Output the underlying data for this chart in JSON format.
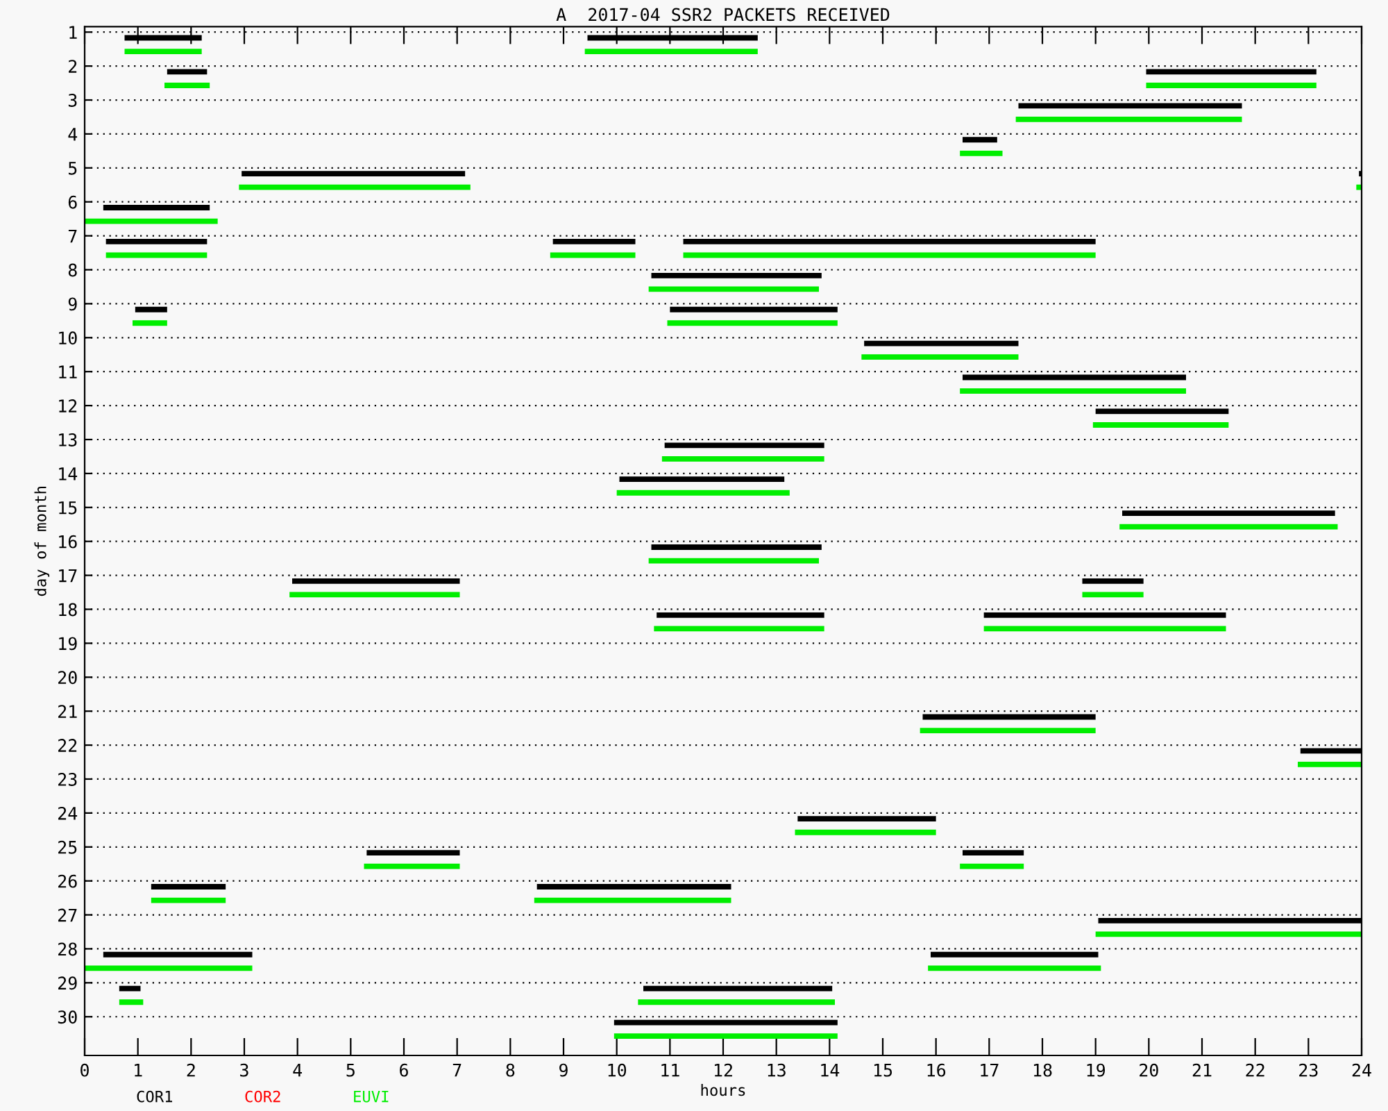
{
  "chart_data": {
    "type": "bar",
    "orientation": "horizontal",
    "title": "A  2017-04 SSR2 PACKETS RECEIVED",
    "xlabel": "hours",
    "ylabel": "day of month",
    "categories": [
      "1",
      "2",
      "3",
      "4",
      "5",
      "6",
      "7",
      "8",
      "9",
      "10",
      "11",
      "12",
      "13",
      "14",
      "15",
      "16",
      "17",
      "18",
      "19",
      "20",
      "21",
      "22",
      "23",
      "24",
      "25",
      "26",
      "27",
      "28",
      "29",
      "30"
    ],
    "xlim": [
      0,
      24
    ],
    "xticks": [
      0,
      1,
      2,
      3,
      4,
      5,
      6,
      7,
      8,
      9,
      10,
      11,
      12,
      13,
      14,
      15,
      16,
      17,
      18,
      19,
      20,
      21,
      22,
      23,
      24
    ],
    "grid": "y",
    "legend": "bottom",
    "series": [
      {
        "name": "COR1",
        "color": "#000000",
        "base": [
          0.75,
          1.55,
          17.55,
          16.5,
          2.95,
          0.35,
          0.4,
          10.65,
          0.95,
          14.65,
          16.5,
          19.0,
          10.9,
          10.05,
          19.5,
          10.65,
          3.9,
          10.75,
          null,
          null,
          15.75,
          22.85,
          null,
          13.4,
          5.3,
          1.25,
          19.05,
          0.35,
          0.65,
          9.95
        ],
        "values": [
          1.45,
          0.75,
          4.2,
          0.65,
          4.2,
          2.0,
          1.9,
          3.2,
          0.6,
          2.9,
          4.2,
          2.5,
          3.0,
          3.1,
          4.0,
          3.2,
          3.15,
          3.15,
          null,
          null,
          3.25,
          1.15,
          null,
          2.6,
          1.75,
          1.4,
          4.95,
          2.8,
          0.4,
          4.2
        ]
      },
      {
        "color": "#000000",
        "base": [
          9.45,
          19.95,
          null,
          null,
          23.95,
          null,
          8.8,
          null,
          11.0,
          null,
          null,
          null,
          null,
          null,
          null,
          null,
          18.75,
          16.9,
          null,
          null,
          null,
          null,
          null,
          null,
          16.5,
          8.5,
          null,
          15.9,
          10.5,
          null
        ],
        "values": [
          3.2,
          3.2,
          null,
          null,
          0.05,
          null,
          1.55,
          null,
          3.15,
          null,
          null,
          null,
          null,
          null,
          null,
          null,
          1.15,
          4.55,
          null,
          null,
          null,
          null,
          null,
          null,
          1.15,
          3.65,
          null,
          3.15,
          3.55,
          null
        ]
      },
      {
        "color": "#000000",
        "base": [
          null,
          null,
          null,
          null,
          null,
          null,
          11.25,
          null,
          null,
          null,
          null,
          null,
          null,
          null,
          null,
          null,
          null,
          null,
          null,
          null,
          null,
          null,
          null,
          null,
          null,
          null,
          null,
          null,
          null,
          null
        ],
        "values": [
          null,
          null,
          null,
          null,
          null,
          null,
          7.75,
          null,
          null,
          null,
          null,
          null,
          null,
          null,
          null,
          null,
          null,
          null,
          null,
          null,
          null,
          null,
          null,
          null,
          null,
          null,
          null,
          null,
          null,
          null
        ]
      },
      {
        "name": "COR2",
        "color": "#ff0000",
        "base": [
          null,
          null,
          null,
          null,
          null,
          null,
          null,
          null,
          null,
          null,
          null,
          null,
          null,
          null,
          null,
          null,
          null,
          null,
          null,
          null,
          null,
          null,
          null,
          null,
          null,
          null,
          null,
          null,
          null,
          null
        ],
        "values": [
          null,
          null,
          null,
          null,
          null,
          null,
          null,
          null,
          null,
          null,
          null,
          null,
          null,
          null,
          null,
          null,
          null,
          null,
          null,
          null,
          null,
          null,
          null,
          null,
          null,
          null,
          null,
          null,
          null,
          null
        ]
      },
      {
        "name": "EUVI",
        "color": "#00ee00",
        "base": [
          0.75,
          1.5,
          17.5,
          16.45,
          2.9,
          0.0,
          0.4,
          10.6,
          0.9,
          14.6,
          16.45,
          18.95,
          10.85,
          10.0,
          19.45,
          10.6,
          3.85,
          10.7,
          null,
          null,
          15.7,
          22.8,
          null,
          13.35,
          5.25,
          1.25,
          19.0,
          0.0,
          0.65,
          9.95
        ],
        "values": [
          1.45,
          0.85,
          4.25,
          0.8,
          4.35,
          2.5,
          1.9,
          3.2,
          0.65,
          2.95,
          4.25,
          2.55,
          3.05,
          3.25,
          4.1,
          3.2,
          3.2,
          3.2,
          null,
          null,
          3.3,
          1.2,
          null,
          2.65,
          1.8,
          1.4,
          5.0,
          3.15,
          0.45,
          4.2
        ]
      },
      {
        "color": "#00ee00",
        "base": [
          9.4,
          19.95,
          null,
          null,
          23.9,
          null,
          8.75,
          null,
          10.95,
          null,
          null,
          null,
          null,
          null,
          null,
          null,
          18.75,
          16.9,
          null,
          null,
          null,
          null,
          null,
          null,
          16.45,
          8.45,
          null,
          15.85,
          10.4,
          null
        ],
        "values": [
          3.25,
          3.2,
          null,
          null,
          0.1,
          null,
          1.6,
          null,
          3.2,
          null,
          null,
          null,
          null,
          null,
          null,
          null,
          1.15,
          4.55,
          null,
          null,
          null,
          null,
          null,
          null,
          1.2,
          3.7,
          null,
          3.25,
          3.7,
          null
        ]
      },
      {
        "color": "#00ee00",
        "base": [
          null,
          null,
          null,
          null,
          null,
          null,
          11.25,
          null,
          null,
          null,
          null,
          null,
          null,
          null,
          null,
          null,
          null,
          null,
          null,
          null,
          null,
          null,
          null,
          null,
          null,
          null,
          null,
          null,
          null,
          null
        ],
        "values": [
          null,
          null,
          null,
          null,
          null,
          null,
          7.75,
          null,
          null,
          null,
          null,
          null,
          null,
          null,
          null,
          null,
          null,
          null,
          null,
          null,
          null,
          null,
          null,
          null,
          null,
          null,
          null,
          null,
          null,
          null
        ]
      }
    ]
  }
}
